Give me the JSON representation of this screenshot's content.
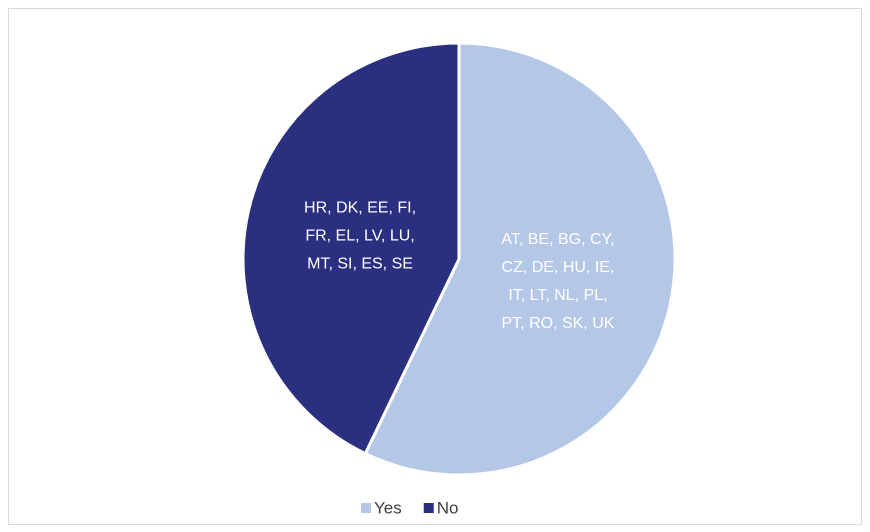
{
  "chart_data": {
    "type": "pie",
    "categories": [
      "Yes",
      "No"
    ],
    "values": [
      16,
      12
    ],
    "colors": [
      "#b4c7e7",
      "#2a2f7f"
    ],
    "slice_labels": [
      [
        "AT, BE, BG, CY,",
        "CZ, DE, HU, IE,",
        "IT, LT, NL, PL,",
        "PT, RO, SK, UK"
      ],
      [
        "HR, DK, EE, FI,",
        "FR, EL, LV, LU,",
        "MT, SI, ES, SE"
      ]
    ],
    "legend": "bottom"
  }
}
